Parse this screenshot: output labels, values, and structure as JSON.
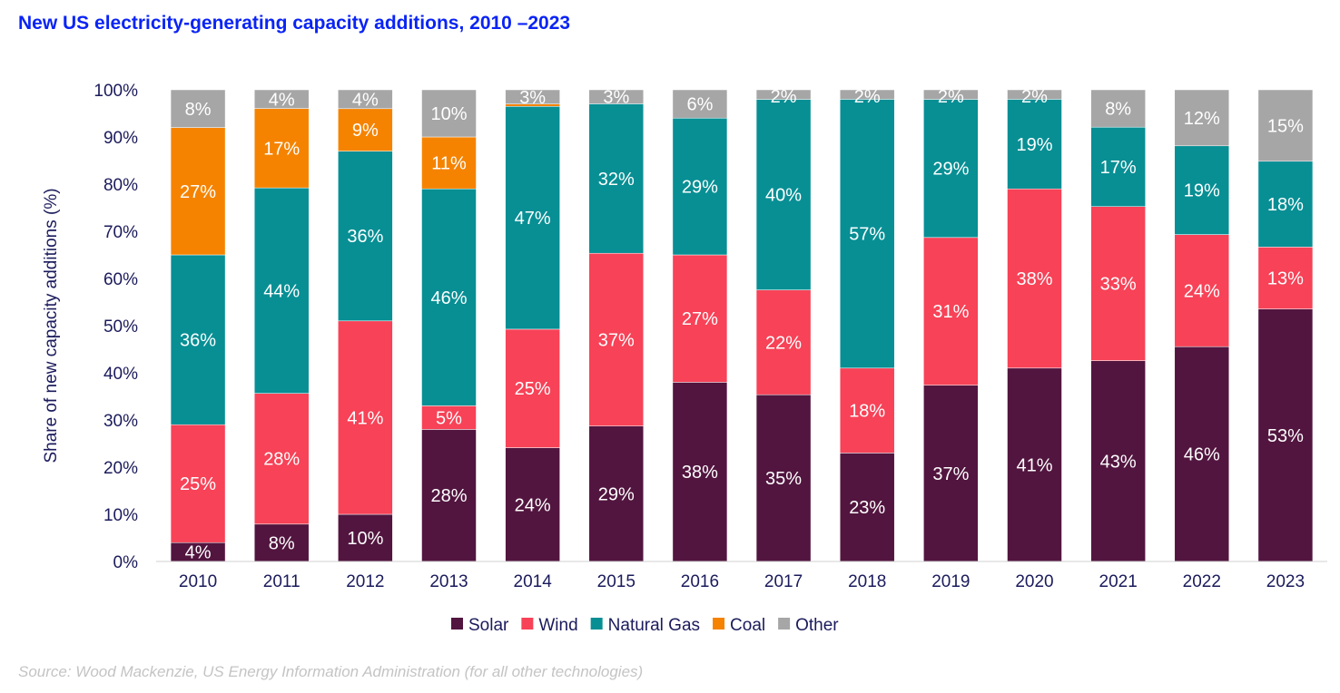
{
  "chart_data": {
    "type": "bar",
    "stacked": true,
    "title": "New US electricity-generating capacity additions, 2010 –2023",
    "xlabel": "",
    "ylabel": "Share of new capacity additions (%)",
    "ylim": [
      0,
      100
    ],
    "yticks": [
      "0%",
      "10%",
      "20%",
      "30%",
      "40%",
      "50%",
      "60%",
      "70%",
      "80%",
      "90%",
      "100%"
    ],
    "grid": false,
    "legend": "bottom",
    "categories": [
      "2010",
      "2011",
      "2012",
      "2013",
      "2014",
      "2015",
      "2016",
      "2017",
      "2018",
      "2019",
      "2020",
      "2021",
      "2022",
      "2023"
    ],
    "series": [
      {
        "name": "Solar",
        "color": "#52153f",
        "values": [
          4,
          8,
          10,
          28,
          24,
          29,
          38,
          35,
          23,
          37,
          41,
          43,
          46,
          53
        ]
      },
      {
        "name": "Wind",
        "color": "#f74257",
        "values": [
          25,
          28,
          41,
          5,
          25,
          37,
          27,
          22,
          18,
          31,
          38,
          33,
          24,
          13
        ]
      },
      {
        "name": "Natural Gas",
        "color": "#078f94",
        "values": [
          36,
          44,
          36,
          46,
          47,
          32,
          29,
          40,
          57,
          29,
          19,
          17,
          19,
          18
        ]
      },
      {
        "name": "Coal",
        "color": "#f58300",
        "values": [
          27,
          17,
          9,
          11,
          0.5,
          0,
          0,
          0,
          0,
          0,
          0,
          0,
          0,
          0
        ]
      },
      {
        "name": "Other",
        "color": "#a6a6a6",
        "values": [
          8,
          4,
          4,
          10,
          3,
          3,
          6,
          2,
          2,
          2,
          2,
          8,
          12,
          15
        ]
      }
    ],
    "source": "Source: Wood Mackenzie, US Energy Information Administration (for all other technologies)"
  }
}
